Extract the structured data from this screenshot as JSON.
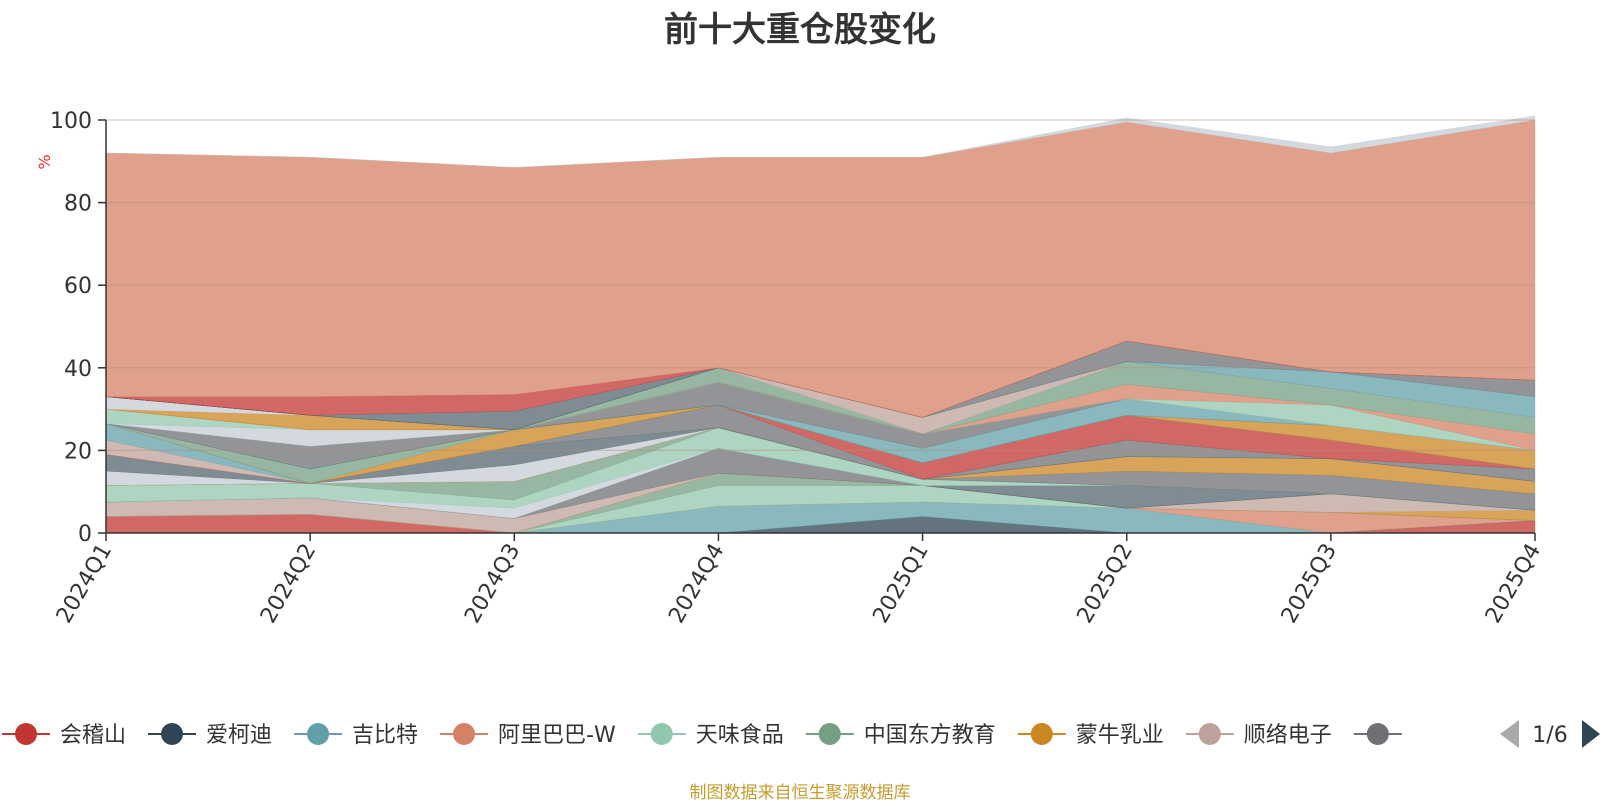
{
  "chart_data": {
    "type": "area",
    "title": "前十大重仓股变化",
    "ylabel": "%",
    "ylim": [
      0,
      100
    ],
    "yticks": [
      0,
      20,
      40,
      60,
      80,
      100
    ],
    "categories": [
      "2024Q1",
      "2024Q2",
      "2024Q3",
      "2024Q4",
      "2025Q1",
      "2025Q2",
      "2025Q3",
      "2025Q4"
    ],
    "stacked": true,
    "grid": true,
    "legend_position": "bottom",
    "series": [
      {
        "name": "会稽山",
        "color": "#c23531",
        "values": [
          4,
          4.5,
          0,
          0,
          0,
          0,
          0,
          3
        ]
      },
      {
        "name": "爱柯迪",
        "color": "#2f4554",
        "values": [
          0,
          0,
          0,
          0,
          4,
          0,
          0,
          0
        ]
      },
      {
        "name": "吉比特",
        "color": "#61a0a8",
        "values": [
          0,
          0,
          0,
          6.5,
          3.5,
          6,
          0,
          0
        ]
      },
      {
        "name": "阿里巴巴-W",
        "color": "#d48265",
        "values": [
          0,
          0,
          0,
          0,
          0,
          0,
          5,
          0
        ]
      },
      {
        "name": "天味食品",
        "color": "#91c7ae",
        "values": [
          0,
          0,
          0,
          5,
          4,
          0,
          0,
          0
        ]
      },
      {
        "name": "中国东方教育",
        "color": "#749f83",
        "values": [
          0,
          0,
          0,
          3,
          0,
          0,
          0,
          0
        ]
      },
      {
        "name": "蒙牛乳业",
        "color": "#ca8622",
        "values": [
          0,
          0,
          0,
          0,
          0,
          0,
          0,
          2.5
        ]
      },
      {
        "name": "顺络电子",
        "color": "#bda29a",
        "values": [
          3.5,
          4,
          3.5,
          0,
          0,
          0,
          4.5,
          0
        ]
      },
      {
        "name": "",
        "color": "#6e7074",
        "values": [
          0,
          0,
          0,
          6,
          0,
          0,
          0,
          0
        ]
      },
      {
        "color": "#546570",
        "values": [
          0,
          0,
          0,
          0,
          0,
          5.5,
          0,
          0
        ]
      },
      {
        "color": "#c4ccd3",
        "values": [
          0,
          0,
          2.5,
          0,
          0,
          0,
          0,
          0
        ]
      },
      {
        "color": "#91c7ae",
        "values": [
          4,
          3.5,
          2,
          5,
          1.5,
          0,
          0,
          0
        ]
      },
      {
        "color": "#749f83",
        "values": [
          0,
          0,
          4.5,
          0,
          0,
          0,
          0,
          0
        ]
      },
      {
        "color": "#6e7074",
        "values": [
          0,
          0,
          0,
          0,
          0,
          3.5,
          4.5,
          4
        ]
      },
      {
        "color": "#ca8622",
        "values": [
          0,
          0,
          0,
          0,
          0,
          3.5,
          4,
          3
        ]
      },
      {
        "color": "#c4ccd3",
        "values": [
          3.5,
          0,
          4,
          0,
          0,
          0,
          0,
          0
        ]
      },
      {
        "color": "#546570",
        "values": [
          4,
          0,
          4.5,
          0,
          0,
          0,
          0,
          0
        ]
      },
      {
        "color": "#6e7074",
        "values": [
          0,
          0,
          0,
          5.5,
          0,
          4,
          0,
          3
        ]
      },
      {
        "color": "#c23531",
        "values": [
          0,
          0,
          0,
          0,
          4,
          6,
          4.5,
          0
        ]
      },
      {
        "color": "#bda29a",
        "values": [
          3.5,
          0,
          0,
          0,
          0,
          0,
          0,
          0
        ]
      },
      {
        "color": "#61a0a8",
        "values": [
          4,
          0,
          0,
          0,
          0,
          0,
          0,
          0
        ]
      },
      {
        "color": "#ca8622",
        "values": [
          0,
          0,
          4,
          0,
          0,
          0,
          3.5,
          4.5
        ]
      },
      {
        "color": "#749f83",
        "values": [
          0,
          3.5,
          0,
          0,
          0,
          0,
          0,
          0
        ]
      },
      {
        "color": "#61a0a8",
        "values": [
          0,
          0,
          0,
          0,
          3.5,
          4,
          0,
          0
        ]
      },
      {
        "color": "#6e7074",
        "values": [
          0,
          5.5,
          0,
          5.5,
          3.5,
          0,
          0,
          0
        ]
      },
      {
        "color": "#c4ccd3",
        "values": [
          0,
          4,
          0,
          0,
          0,
          0,
          0,
          0
        ]
      },
      {
        "color": "#91c7ae",
        "values": [
          3.5,
          0,
          0,
          0,
          0,
          0,
          5,
          0
        ]
      },
      {
        "color": "#d48265",
        "values": [
          0,
          0,
          0,
          0,
          0,
          3.5,
          0,
          4
        ]
      },
      {
        "color": "#ca8622",
        "values": [
          0,
          3.5,
          0,
          0,
          0,
          0,
          0,
          0
        ]
      },
      {
        "color": "#c4ccd3",
        "values": [
          3,
          0,
          0,
          0,
          0,
          0,
          0,
          0
        ]
      },
      {
        "color": "#749f83",
        "values": [
          0,
          0,
          0,
          3.5,
          0,
          5.5,
          4,
          4
        ]
      },
      {
        "color": "#bda29a",
        "values": [
          0,
          0,
          0,
          0,
          4,
          0,
          0,
          0
        ]
      },
      {
        "color": "#61a0a8",
        "values": [
          0,
          0,
          0,
          0,
          0,
          0,
          4,
          5
        ]
      },
      {
        "color": "#6e7074",
        "values": [
          0,
          0,
          0,
          0,
          0,
          5,
          0,
          4
        ]
      },
      {
        "color": "#546570",
        "values": [
          0,
          0,
          4.5,
          0,
          0,
          0,
          0,
          0
        ]
      },
      {
        "color": "#c23531",
        "values": [
          0,
          4.5,
          4,
          0,
          0,
          0,
          0,
          0
        ]
      },
      {
        "color": "#d48265",
        "values": [
          59,
          58,
          55,
          51,
          63,
          53,
          53,
          63
        ]
      },
      {
        "color": "#c4ccd3",
        "values": [
          0,
          0,
          0,
          0,
          0,
          1,
          1.5,
          1
        ]
      }
    ]
  },
  "legend": {
    "page": "1/6"
  },
  "source_note": "制图数据来自恒生聚源数据库"
}
